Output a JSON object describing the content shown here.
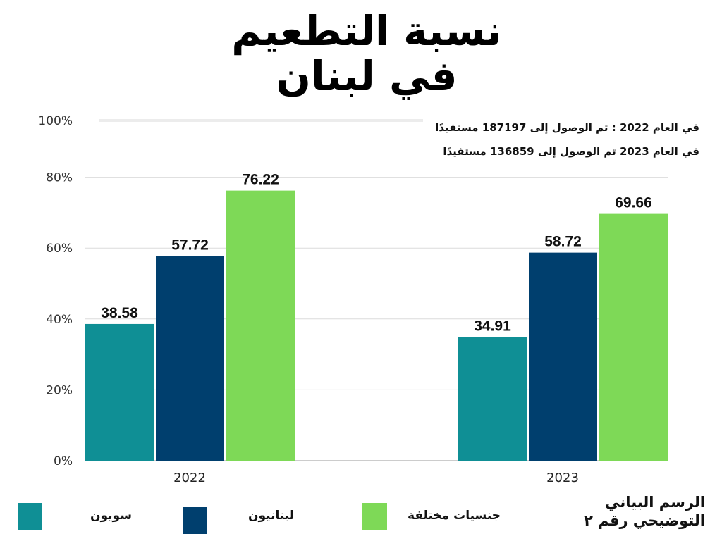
{
  "chart_data": {
    "type": "bar",
    "title": "نسبة التطعيم في لبنان",
    "categories": [
      "2022",
      "2023"
    ],
    "series": [
      {
        "name": "سويون",
        "values": [
          38.58,
          34.91
        ],
        "color": "#0f8f95"
      },
      {
        "name": "لبنانيون",
        "values": [
          57.72,
          58.72
        ],
        "color": "#003f6e"
      },
      {
        "name": "جنسيات مختلفة",
        "values": [
          76.22,
          69.66
        ],
        "color": "#7ed957"
      }
    ],
    "yticks": [
      "0%",
      "20%",
      "40%",
      "60%",
      "80%",
      "100%"
    ],
    "ylim": [
      0,
      100
    ],
    "grid": true,
    "legend": "bottom",
    "annotations": [
      "في العام 2022 : تم الوصول إلى 187197 مستفيدًا",
      "في العام 2023 تم الوصول إلى 136859 مستفيدًا"
    ],
    "caption": [
      "الرسم البياني",
      "التوضيحي رقم ٢"
    ]
  }
}
